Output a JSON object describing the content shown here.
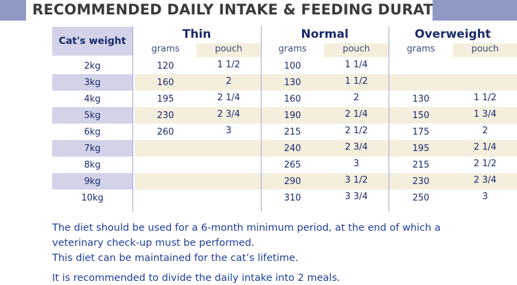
{
  "title": "RECOMMENDED DAILY INTAKE & FEEDING DURATION",
  "table": {
    "weight_header": "Cat's weight",
    "groups": [
      "Thin",
      "Normal",
      "Overweight"
    ],
    "sub_headers": [
      "grams",
      "pouch",
      "grams",
      "pouch",
      "grams",
      "pouch"
    ],
    "rows": [
      {
        "weight": "2kg",
        "cells": [
          "120",
          "1 1/2",
          "100",
          "1 1/4",
          "",
          ""
        ]
      },
      {
        "weight": "3kg",
        "cells": [
          "160",
          "2",
          "130",
          "1 1/2",
          "",
          ""
        ]
      },
      {
        "weight": "4kg",
        "cells": [
          "195",
          "2 1/4",
          "160",
          "2",
          "130",
          "1 1/2"
        ]
      },
      {
        "weight": "5kg",
        "cells": [
          "230",
          "2 3/4",
          "190",
          "2 1/4",
          "150",
          "1 3/4"
        ]
      },
      {
        "weight": "6kg",
        "cells": [
          "260",
          "3",
          "215",
          "2 1/2",
          "175",
          "2"
        ]
      },
      {
        "weight": "7kg",
        "cells": [
          "",
          "",
          "240",
          "2 3/4",
          "195",
          "2 1/4"
        ]
      },
      {
        "weight": "8kg",
        "cells": [
          "",
          "",
          "265",
          "3",
          "215",
          "2 1/2"
        ]
      },
      {
        "weight": "9kg",
        "cells": [
          "",
          "",
          "290",
          "3 1/2",
          "230",
          "2 3/4"
        ]
      },
      {
        "weight": "10kg",
        "cells": [
          "",
          "",
          "310",
          "3 3/4",
          "250",
          "3"
        ]
      }
    ]
  },
  "notes": [
    "The diet should be used for a 6-month minimum period, at the end of which a",
    "veterinary check-up must be performed.",
    "This diet can be maintained for the cat’s lifetime.",
    "It is recommended to divide the daily intake into 2 meals."
  ],
  "colors": {
    "banner": "#8f99c6",
    "weight_band": "#d2d3e8",
    "pouch_band": "#f4eedd",
    "text": "#1a2a6c",
    "note_text": "#1e3d9a"
  }
}
